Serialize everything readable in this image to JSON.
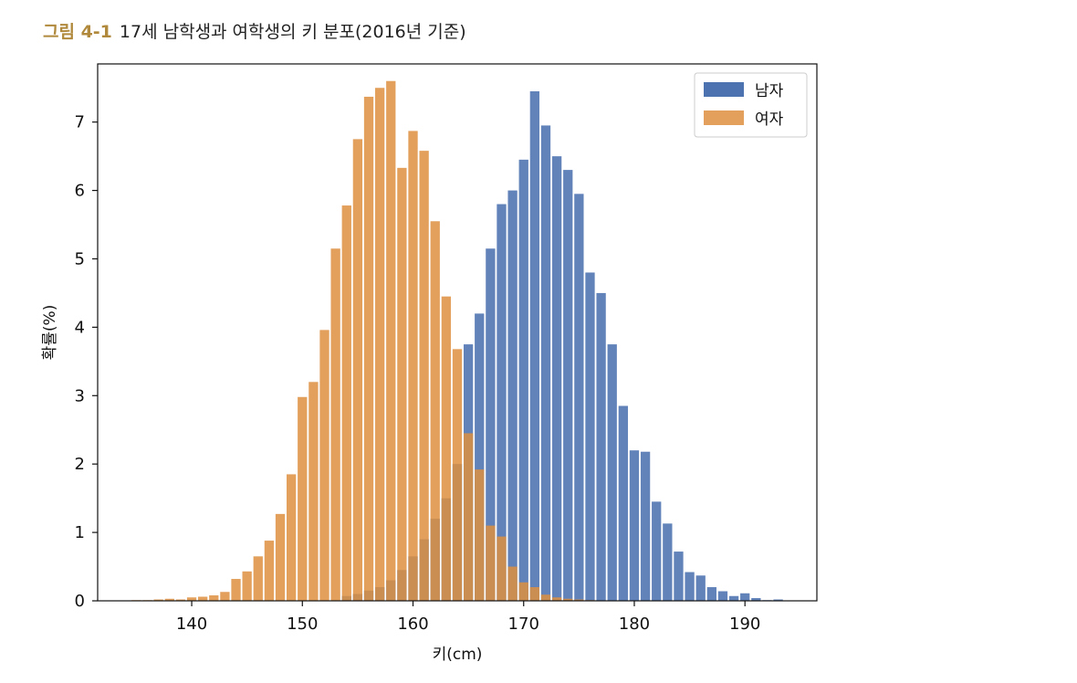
{
  "caption": {
    "number": "그림 4-1",
    "text": "17세 남학생과 여학생의 키 분포(2016년 기준)"
  },
  "chart_data": {
    "type": "bar",
    "xlabel": "키(cm)",
    "ylabel": "확률(%)",
    "xlim": [
      131.5,
      196.5
    ],
    "ylim": [
      0,
      7.85
    ],
    "xticks": [
      140,
      150,
      160,
      170,
      180,
      190
    ],
    "yticks": [
      0,
      1,
      2,
      3,
      4,
      5,
      6,
      7
    ],
    "legend_position": "top-right",
    "series": [
      {
        "name": "남자",
        "color": "#4c72b0",
        "x": [
          154,
          155,
          156,
          157,
          158,
          159,
          160,
          161,
          162,
          163,
          164,
          165,
          166,
          167,
          168,
          169,
          170,
          171,
          172,
          173,
          174,
          175,
          176,
          177,
          178,
          179,
          180,
          181,
          182,
          183,
          184,
          185,
          186,
          187,
          188,
          189,
          190,
          191,
          192,
          193
        ],
        "values": [
          0.07,
          0.1,
          0.15,
          0.2,
          0.3,
          0.45,
          0.65,
          0.9,
          1.2,
          1.5,
          2.0,
          3.75,
          4.2,
          5.15,
          5.8,
          6.0,
          6.45,
          7.45,
          6.95,
          6.5,
          6.3,
          5.95,
          4.8,
          4.5,
          3.75,
          2.85,
          2.2,
          2.18,
          1.45,
          1.13,
          0.72,
          0.42,
          0.37,
          0.2,
          0.14,
          0.07,
          0.11,
          0.04,
          0.01,
          0.02
        ]
      },
      {
        "name": "여자",
        "color": "#dd8f3f",
        "x": [
          135,
          136,
          137,
          138,
          139,
          140,
          141,
          142,
          143,
          144,
          145,
          146,
          147,
          148,
          149,
          150,
          151,
          152,
          153,
          154,
          155,
          156,
          157,
          158,
          159,
          160,
          161,
          162,
          163,
          164,
          165,
          166,
          167,
          168,
          169,
          170,
          171,
          172,
          173,
          174,
          175,
          176
        ],
        "values": [
          0.01,
          0.01,
          0.02,
          0.03,
          0.02,
          0.05,
          0.06,
          0.08,
          0.13,
          0.32,
          0.43,
          0.65,
          0.88,
          1.27,
          1.85,
          2.98,
          3.2,
          3.96,
          5.15,
          5.78,
          6.75,
          7.37,
          7.5,
          7.6,
          6.33,
          6.87,
          6.58,
          5.55,
          4.45,
          3.68,
          2.45,
          1.92,
          1.1,
          0.94,
          0.5,
          0.27,
          0.2,
          0.09,
          0.05,
          0.03,
          0.02,
          0.01
        ]
      }
    ]
  }
}
